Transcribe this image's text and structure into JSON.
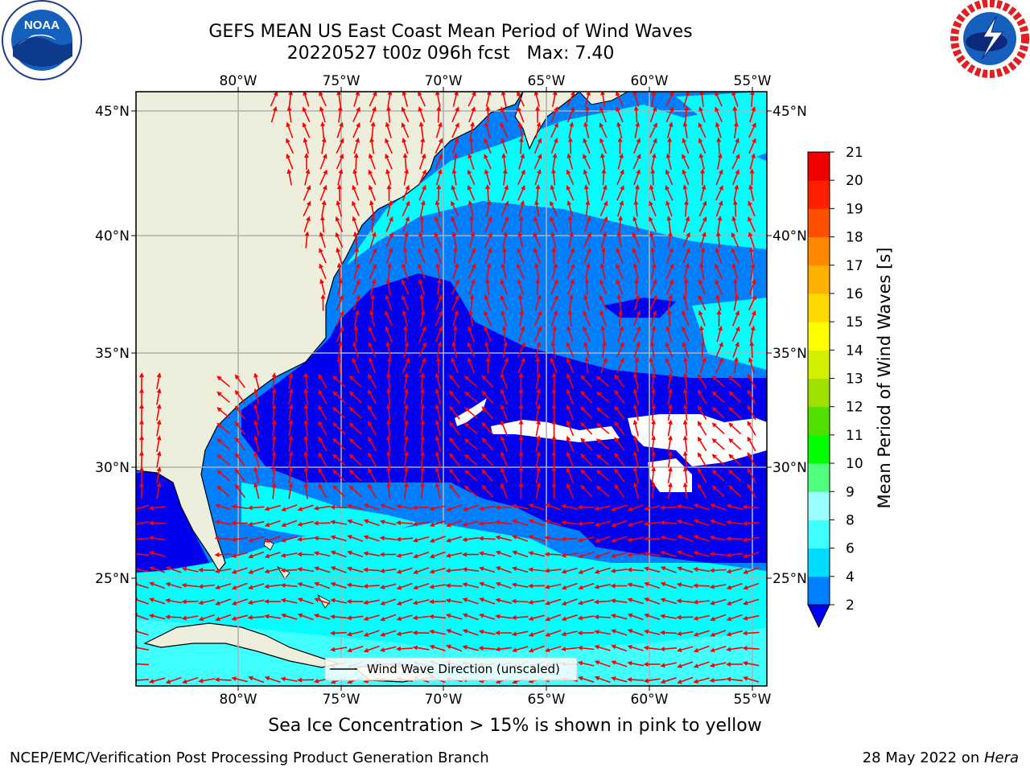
{
  "title": "GEFS MEAN US East Coast Mean Period of Wind Waves",
  "subtitle": "20220527 t00z 096h fcst   Max: 7.40",
  "logos": {
    "left": "NOAA",
    "right": "NATIONAL WEATHER SERVICE"
  },
  "axes": {
    "lon_labels": [
      "80°W",
      "75°W",
      "70°W",
      "65°W",
      "60°W",
      "55°W"
    ],
    "lat_labels": [
      "45°N",
      "40°N",
      "35°N",
      "30°N",
      "25°N"
    ]
  },
  "map": {
    "lon_range": [
      -85,
      -54.2
    ],
    "lat_range": [
      20.5,
      46
    ],
    "gridlines": true
  },
  "legend": {
    "text": "Wind Wave Direction (unscaled)"
  },
  "colorbar": {
    "label": "Mean Period of Wind Waves [s]",
    "ticks": [
      "2",
      "4",
      "6",
      "8",
      "9",
      "10",
      "11",
      "12",
      "13",
      "14",
      "15",
      "16",
      "17",
      "18",
      "19",
      "20",
      "21"
    ],
    "colors": [
      "#0000f0",
      "#0080ff",
      "#00dcff",
      "#40ffff",
      "#9cffff",
      "#50ff80",
      "#00ff00",
      "#50e000",
      "#a0e000",
      "#d0f000",
      "#ffff00",
      "#ffd800",
      "#ffb000",
      "#ff8800",
      "#ff5000",
      "#ff2000",
      "#f00000"
    ]
  },
  "colors": {
    "land": "#eeeedc",
    "arrows": "#ff0000",
    "level_2": "#0000f0",
    "level_4": "#0080ff",
    "level_6": "#00ffff",
    "level_8": "#40ffff"
  },
  "footer": {
    "ice_note": "Sea Ice Concentration > 15% is shown in pink to yellow",
    "credit": "NCEP/EMC/Verification Post Processing Product Generation Branch",
    "date": "28 May 2022 on ",
    "machine": "Hera"
  }
}
